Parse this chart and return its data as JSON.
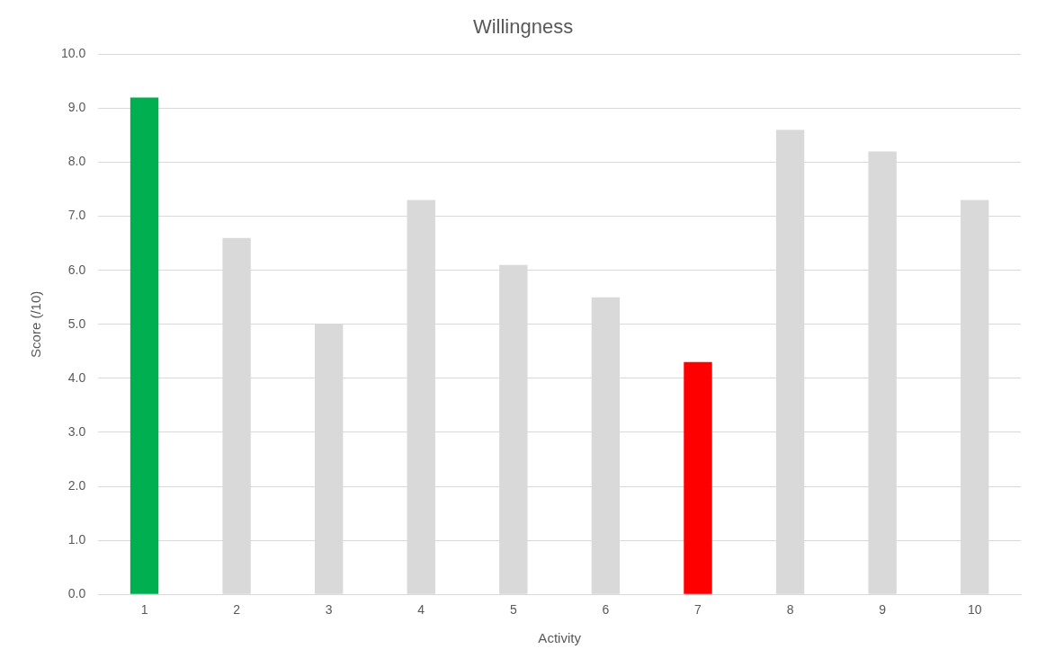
{
  "chart_data": {
    "type": "bar",
    "title": "Willingness",
    "xlabel": "Activity",
    "ylabel": "Score (/10)",
    "categories": [
      "1",
      "2",
      "3",
      "4",
      "5",
      "6",
      "7",
      "8",
      "9",
      "10"
    ],
    "values": [
      9.2,
      6.6,
      5.0,
      7.3,
      6.1,
      5.5,
      4.3,
      8.6,
      8.2,
      7.3
    ],
    "colors": [
      "#00b050",
      "#d9d9d9",
      "#d9d9d9",
      "#d9d9d9",
      "#d9d9d9",
      "#d9d9d9",
      "#ff0000",
      "#d9d9d9",
      "#d9d9d9",
      "#d9d9d9"
    ],
    "ylim": [
      0,
      10
    ],
    "yticks": [
      {
        "value": 0,
        "label": "0.0"
      },
      {
        "value": 1,
        "label": "1.0"
      },
      {
        "value": 2,
        "label": "2.0"
      },
      {
        "value": 3,
        "label": "3.0"
      },
      {
        "value": 4,
        "label": "4.0"
      },
      {
        "value": 5,
        "label": "5.0"
      },
      {
        "value": 6,
        "label": "6.0"
      },
      {
        "value": 7,
        "label": "7.0"
      },
      {
        "value": 8,
        "label": "8.0"
      },
      {
        "value": 9,
        "label": "9.0"
      },
      {
        "value": 10,
        "label": "10.0"
      }
    ],
    "grid": "y",
    "legend": false
  }
}
